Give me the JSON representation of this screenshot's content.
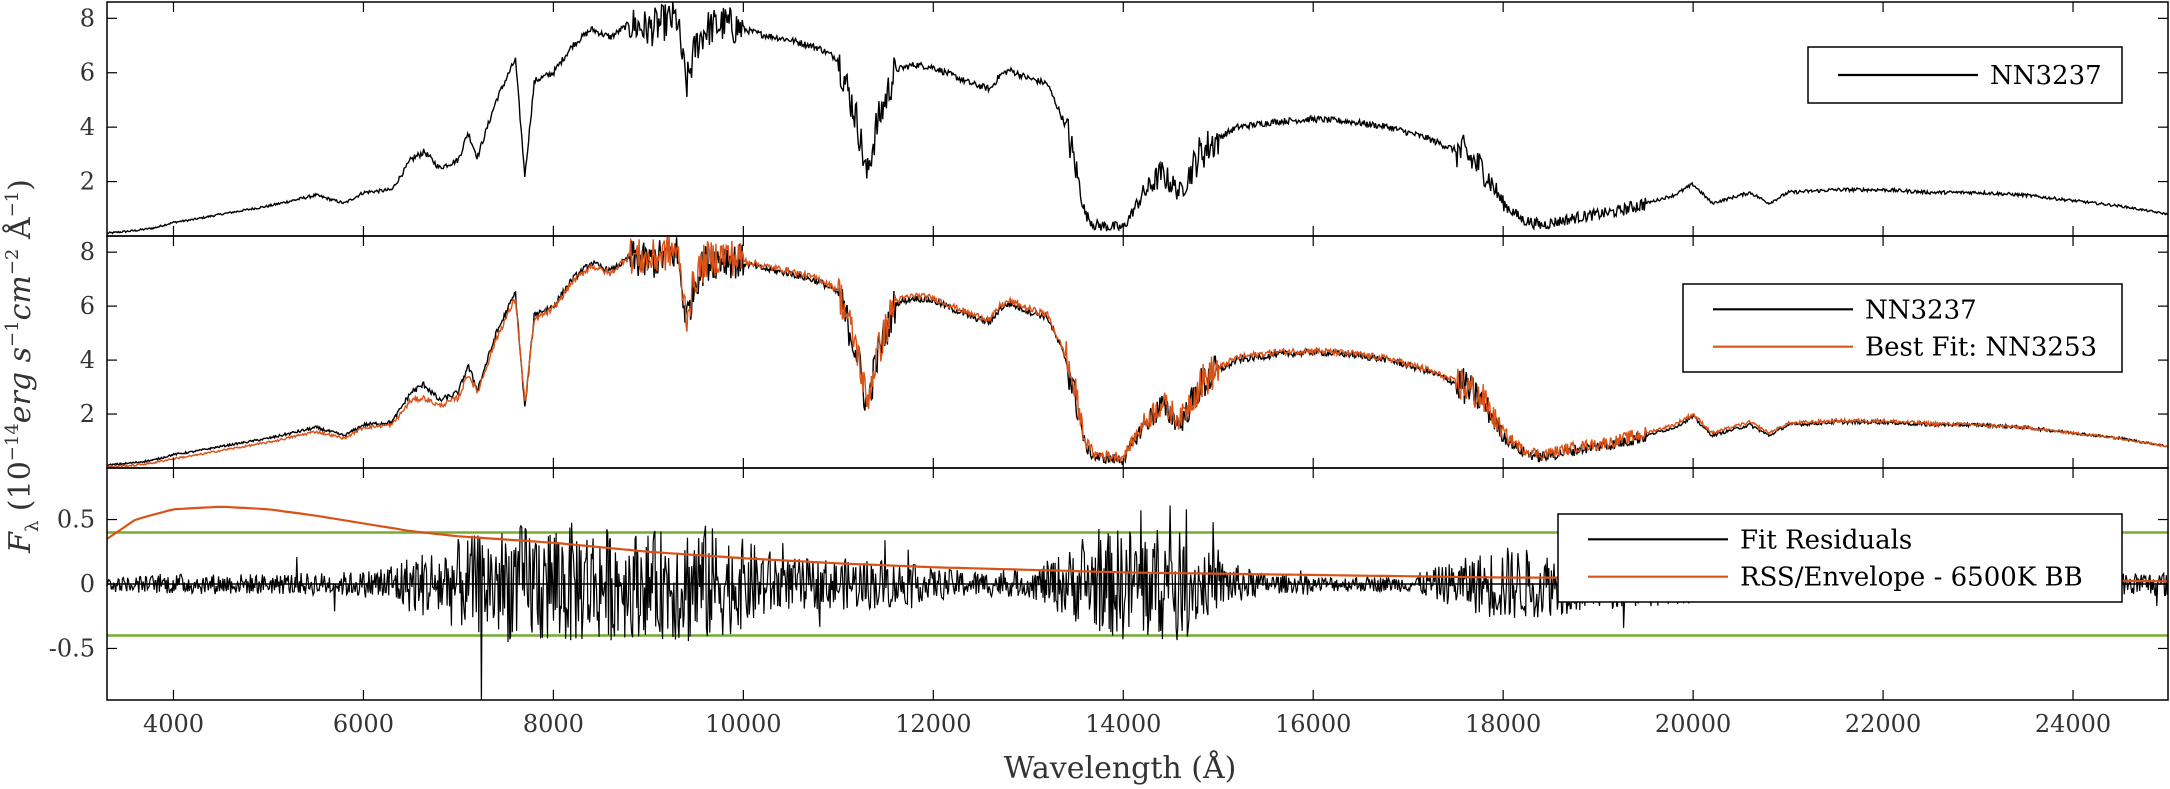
{
  "chart_data": [
    {
      "type": "line",
      "panel": "top",
      "xlim": [
        3300,
        25000
      ],
      "ylim": [
        0,
        8.6
      ],
      "yticks": [
        2,
        4,
        6,
        8
      ],
      "legend": {
        "placement": "top-right",
        "entries": [
          {
            "label": "NN3237",
            "color": "#000000"
          }
        ]
      },
      "series": [
        {
          "name": "NN3237",
          "color": "#000000",
          "x": [
            3300,
            3600,
            3800,
            4000,
            4200,
            4500,
            5000,
            5500,
            5800,
            6000,
            6300,
            6500,
            6640,
            6800,
            7000,
            7100,
            7200,
            7400,
            7600,
            7700,
            7800,
            8000,
            8200,
            8400,
            8600,
            8800,
            9000,
            9200,
            9300,
            9400,
            9500,
            9600,
            9800,
            10000,
            10200,
            10500,
            10800,
            11000,
            11200,
            11300,
            11400,
            11600,
            11800,
            12000,
            12200,
            12400,
            12600,
            12700,
            12800,
            13000,
            13200,
            13400,
            13500,
            13600,
            13700,
            14000,
            14200,
            14400,
            14600,
            14800,
            15000,
            15200,
            15600,
            16000,
            16400,
            16800,
            17200,
            17600,
            17800,
            18000,
            18200,
            18400,
            18800,
            19200,
            19500,
            19800,
            20000,
            20200,
            20400,
            20600,
            20800,
            21000,
            21500,
            22000,
            22500,
            23000,
            23500,
            24000,
            24500,
            25000
          ],
          "y": [
            0.1,
            0.2,
            0.3,
            0.5,
            0.6,
            0.8,
            1.1,
            1.5,
            1.2,
            1.6,
            1.7,
            2.8,
            3.1,
            2.5,
            2.8,
            3.8,
            2.9,
            5.0,
            6.5,
            2.2,
            5.7,
            6.0,
            7.0,
            7.6,
            7.3,
            7.8,
            7.6,
            7.9,
            8.0,
            5.5,
            7.0,
            7.6,
            7.8,
            7.6,
            7.4,
            7.2,
            6.9,
            6.5,
            4.2,
            2.2,
            4.0,
            6.1,
            6.3,
            6.2,
            5.9,
            5.6,
            5.4,
            5.9,
            6.1,
            5.8,
            5.6,
            4.0,
            2.5,
            0.8,
            0.4,
            0.3,
            1.5,
            2.3,
            1.6,
            3.0,
            3.6,
            4.0,
            4.2,
            4.3,
            4.2,
            4.0,
            3.6,
            3.0,
            2.4,
            1.2,
            0.6,
            0.4,
            0.7,
            0.9,
            1.2,
            1.5,
            1.9,
            1.2,
            1.4,
            1.6,
            1.2,
            1.6,
            1.7,
            1.7,
            1.6,
            1.6,
            1.5,
            1.3,
            1.1,
            0.8
          ]
        }
      ]
    },
    {
      "type": "line",
      "panel": "middle",
      "xlim": [
        3300,
        25000
      ],
      "ylim": [
        0,
        8.6
      ],
      "yticks": [
        2,
        4,
        6,
        8
      ],
      "legend": {
        "placement": "top-right",
        "entries": [
          {
            "label": "NN3237",
            "color": "#000000"
          },
          {
            "label": "Best Fit: NN3253",
            "color": "#d95319"
          }
        ]
      },
      "series": [
        {
          "name": "NN3237",
          "color": "#000000",
          "x": [
            3300,
            3600,
            3800,
            4000,
            4200,
            4500,
            5000,
            5500,
            5800,
            6000,
            6300,
            6500,
            6640,
            6800,
            7000,
            7100,
            7200,
            7400,
            7600,
            7700,
            7800,
            8000,
            8200,
            8400,
            8600,
            8800,
            9000,
            9200,
            9300,
            9400,
            9500,
            9600,
            9800,
            10000,
            10200,
            10500,
            10800,
            11000,
            11200,
            11300,
            11400,
            11600,
            11800,
            12000,
            12200,
            12400,
            12600,
            12700,
            12800,
            13000,
            13200,
            13400,
            13500,
            13600,
            13700,
            14000,
            14200,
            14400,
            14600,
            14800,
            15000,
            15200,
            15600,
            16000,
            16400,
            16800,
            17200,
            17600,
            17800,
            18000,
            18200,
            18400,
            18800,
            19200,
            19500,
            19800,
            20000,
            20200,
            20400,
            20600,
            20800,
            21000,
            21500,
            22000,
            22500,
            23000,
            23500,
            24000,
            24500,
            25000
          ],
          "y": [
            0.1,
            0.2,
            0.3,
            0.5,
            0.6,
            0.8,
            1.1,
            1.5,
            1.2,
            1.6,
            1.7,
            2.8,
            3.1,
            2.5,
            2.8,
            3.8,
            2.9,
            5.0,
            6.5,
            2.2,
            5.7,
            6.0,
            7.0,
            7.6,
            7.3,
            7.8,
            7.6,
            7.9,
            8.0,
            5.5,
            7.0,
            7.6,
            7.8,
            7.6,
            7.4,
            7.2,
            6.9,
            6.5,
            4.2,
            2.2,
            4.0,
            6.1,
            6.3,
            6.2,
            5.9,
            5.6,
            5.4,
            5.9,
            6.1,
            5.8,
            5.6,
            4.0,
            2.5,
            0.8,
            0.4,
            0.3,
            1.5,
            2.3,
            1.6,
            3.0,
            3.6,
            4.0,
            4.2,
            4.3,
            4.2,
            4.0,
            3.6,
            3.0,
            2.4,
            1.2,
            0.6,
            0.4,
            0.7,
            0.9,
            1.2,
            1.5,
            1.9,
            1.2,
            1.4,
            1.6,
            1.2,
            1.6,
            1.7,
            1.7,
            1.6,
            1.6,
            1.5,
            1.3,
            1.1,
            0.8
          ]
        },
        {
          "name": "Best Fit: NN3253",
          "color": "#d95319",
          "x": [
            3300,
            3600,
            3800,
            4000,
            4200,
            4500,
            5000,
            5500,
            5800,
            6000,
            6300,
            6500,
            6640,
            6800,
            7000,
            7100,
            7200,
            7400,
            7600,
            7700,
            7800,
            8000,
            8200,
            8400,
            8600,
            8800,
            9000,
            9200,
            9300,
            9400,
            9500,
            9600,
            9800,
            10000,
            10200,
            10500,
            10800,
            11000,
            11200,
            11300,
            11400,
            11600,
            11800,
            12000,
            12200,
            12400,
            12600,
            12700,
            12800,
            13000,
            13200,
            13400,
            13500,
            13600,
            13700,
            14000,
            14200,
            14400,
            14600,
            14800,
            15000,
            15200,
            15600,
            16000,
            16400,
            16800,
            17200,
            17600,
            17800,
            18000,
            18200,
            18400,
            18800,
            19200,
            19500,
            19800,
            20000,
            20200,
            20400,
            20600,
            20800,
            21000,
            21500,
            22000,
            22500,
            23000,
            23500,
            24000,
            24500,
            25000
          ],
          "y": [
            0.05,
            0.1,
            0.2,
            0.35,
            0.45,
            0.65,
            0.95,
            1.35,
            1.1,
            1.5,
            1.6,
            2.5,
            2.6,
            2.3,
            2.6,
            3.5,
            2.8,
            4.8,
            6.3,
            2.4,
            5.5,
            5.9,
            6.9,
            7.5,
            7.2,
            7.9,
            7.7,
            8.0,
            8.1,
            5.6,
            7.1,
            7.7,
            7.9,
            7.7,
            7.5,
            7.3,
            7.0,
            6.6,
            4.4,
            2.4,
            4.1,
            6.2,
            6.4,
            6.3,
            6.0,
            5.7,
            5.5,
            6.0,
            6.2,
            5.9,
            5.7,
            4.1,
            2.7,
            1.0,
            0.5,
            0.4,
            1.6,
            2.4,
            1.8,
            3.1,
            3.7,
            4.1,
            4.3,
            4.35,
            4.25,
            4.05,
            3.65,
            3.05,
            2.5,
            1.3,
            0.7,
            0.5,
            0.8,
            1.0,
            1.3,
            1.6,
            2.0,
            1.3,
            1.5,
            1.7,
            1.3,
            1.65,
            1.75,
            1.75,
            1.65,
            1.6,
            1.5,
            1.3,
            1.1,
            0.8
          ]
        }
      ]
    },
    {
      "type": "line",
      "panel": "bottom",
      "xlim": [
        3300,
        25000
      ],
      "ylim": [
        -0.9,
        0.9
      ],
      "yticks": [
        -0.5,
        0,
        0.5
      ],
      "ytick_labels": [
        "-0.5",
        "0",
        "0.5"
      ],
      "xticks": [
        4000,
        6000,
        8000,
        10000,
        12000,
        14000,
        16000,
        18000,
        20000,
        22000,
        24000
      ],
      "xlabel": "Wavelength (Å)",
      "ylabel": "F_λ (10^-14 erg s^-1 cm^-2 Å^-1)",
      "threshold_lines": [
        0.4,
        -0.4
      ],
      "threshold_color": "#77ac30",
      "legend": {
        "placement": "top-right",
        "entries": [
          {
            "label": "Fit Residuals",
            "color": "#000000"
          },
          {
            "label": "RSS/Envelope - 6500K BB",
            "color": "#d95319"
          }
        ]
      },
      "series": [
        {
          "name": "Fit Residuals",
          "color": "#000000",
          "x": [
            3300,
            4000,
            5000,
            6000,
            7000,
            7500,
            8000,
            8500,
            9000,
            9500,
            10000,
            10500,
            11000,
            11500,
            12000,
            12500,
            13000,
            13500,
            14000,
            14500,
            15000,
            15500,
            16000,
            17000,
            18000,
            19000,
            20000,
            21000,
            22000,
            23000,
            24000,
            25000
          ],
          "amplitude": [
            0.05,
            0.08,
            0.08,
            0.1,
            0.35,
            0.45,
            0.5,
            0.45,
            0.4,
            0.5,
            0.35,
            0.2,
            0.2,
            0.2,
            0.12,
            0.1,
            0.1,
            0.3,
            0.45,
            0.45,
            0.2,
            0.08,
            0.06,
            0.06,
            0.3,
            0.2,
            0.15,
            0.08,
            0.06,
            0.06,
            0.08,
            0.1
          ]
        },
        {
          "name": "RSS/Envelope - 6500K BB",
          "color": "#d95319",
          "x": [
            3300,
            3600,
            4000,
            4500,
            5000,
            5500,
            6000,
            6500,
            7000,
            8000,
            9000,
            10000,
            11000,
            12000,
            13000,
            14000,
            15000,
            16000,
            17000,
            18000,
            19000,
            20000,
            21000,
            22000,
            23000,
            24000,
            25000
          ],
          "y": [
            0.35,
            0.5,
            0.58,
            0.6,
            0.58,
            0.53,
            0.47,
            0.41,
            0.37,
            0.32,
            0.25,
            0.2,
            0.16,
            0.13,
            0.11,
            0.09,
            0.08,
            0.07,
            0.06,
            0.05,
            0.05,
            0.04,
            0.04,
            0.03,
            0.03,
            0.03,
            0.02
          ]
        }
      ]
    }
  ]
}
